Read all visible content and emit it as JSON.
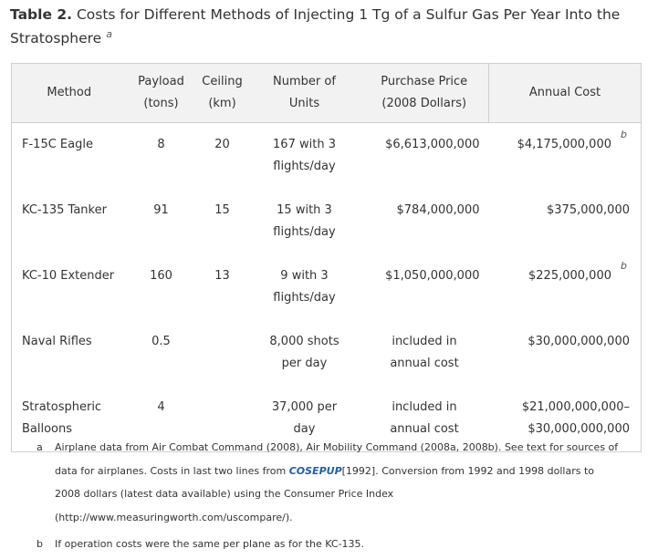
{
  "title": {
    "label": "Table 2.",
    "text": "Costs for Different Methods of Injecting 1 Tg of a Sulfur Gas Per Year Into the Stratosphere",
    "footnote_marker": "a"
  },
  "table": {
    "headers": {
      "method": "Method",
      "payload_line1": "Payload",
      "payload_line2": "(tons)",
      "ceiling_line1": "Ceiling",
      "ceiling_line2": "(km)",
      "units_line1": "Number of",
      "units_line2": "Units",
      "price_line1": "Purchase Price",
      "price_line2": "(2008 Dollars)",
      "annual": "Annual Cost"
    },
    "rows": [
      {
        "method_line1": "F-15C Eagle",
        "method_line2": "",
        "payload": "8",
        "ceiling": "20",
        "units_line1": "167 with 3",
        "units_line2": "flights/day",
        "price_line1": "$6,613,000,000",
        "price_line2": "",
        "annual_line1": "$4,175,000,000",
        "annual_line2": "",
        "annual_marker": "b"
      },
      {
        "method_line1": "KC-135 Tanker",
        "method_line2": "",
        "payload": "91",
        "ceiling": "15",
        "units_line1": "15 with 3",
        "units_line2": "flights/day",
        "price_line1": "$784,000,000",
        "price_line2": "",
        "annual_line1": "$375,000,000",
        "annual_line2": "",
        "annual_marker": ""
      },
      {
        "method_line1": "KC-10 Extender",
        "method_line2": "",
        "payload": "160",
        "ceiling": "13",
        "units_line1": "9 with 3",
        "units_line2": "flights/day",
        "price_line1": "$1,050,000,000",
        "price_line2": "",
        "annual_line1": "$225,000,000",
        "annual_line2": "",
        "annual_marker": "b"
      },
      {
        "method_line1": "Naval Rifles",
        "method_line2": "",
        "payload": "0.5",
        "ceiling": "",
        "units_line1": "8,000 shots",
        "units_line2": "per day",
        "price_line1": "included in",
        "price_line2": "annual cost",
        "annual_line1": "$30,000,000,000",
        "annual_line2": "",
        "annual_marker": ""
      },
      {
        "method_line1": "Stratospheric",
        "method_line2": "Balloons",
        "payload": "4",
        "ceiling": "",
        "units_line1": "37,000 per",
        "units_line2": "day",
        "price_line1": "included in",
        "price_line2": "annual cost",
        "annual_line1": "$21,000,000,000–",
        "annual_line2": "$30,000,000,000",
        "annual_marker": ""
      }
    ]
  },
  "footnotes": {
    "a": {
      "label": "a",
      "text_before": "Airplane data from Air Combat Command (2008), Air Mobility Command (2008a, 2008b). See text for sources of data for airplanes. Costs in last two lines from",
      "link": "COSEPUP",
      "text_after": "[1992]. Conversion from 1992 and 1998 dollars to 2008 dollars (latest data available) using the Consumer Price Index",
      "url": "(http://www.measuringworth.com/uscompare/)",
      "end": "."
    },
    "b": {
      "label": "b",
      "text": "If operation costs were the same per plane as for the KC-135."
    }
  },
  "colors": {
    "header_bg": "#f2f2f2",
    "border": "#cfcfcf",
    "link": "#1f5fa8",
    "text": "#333333"
  }
}
